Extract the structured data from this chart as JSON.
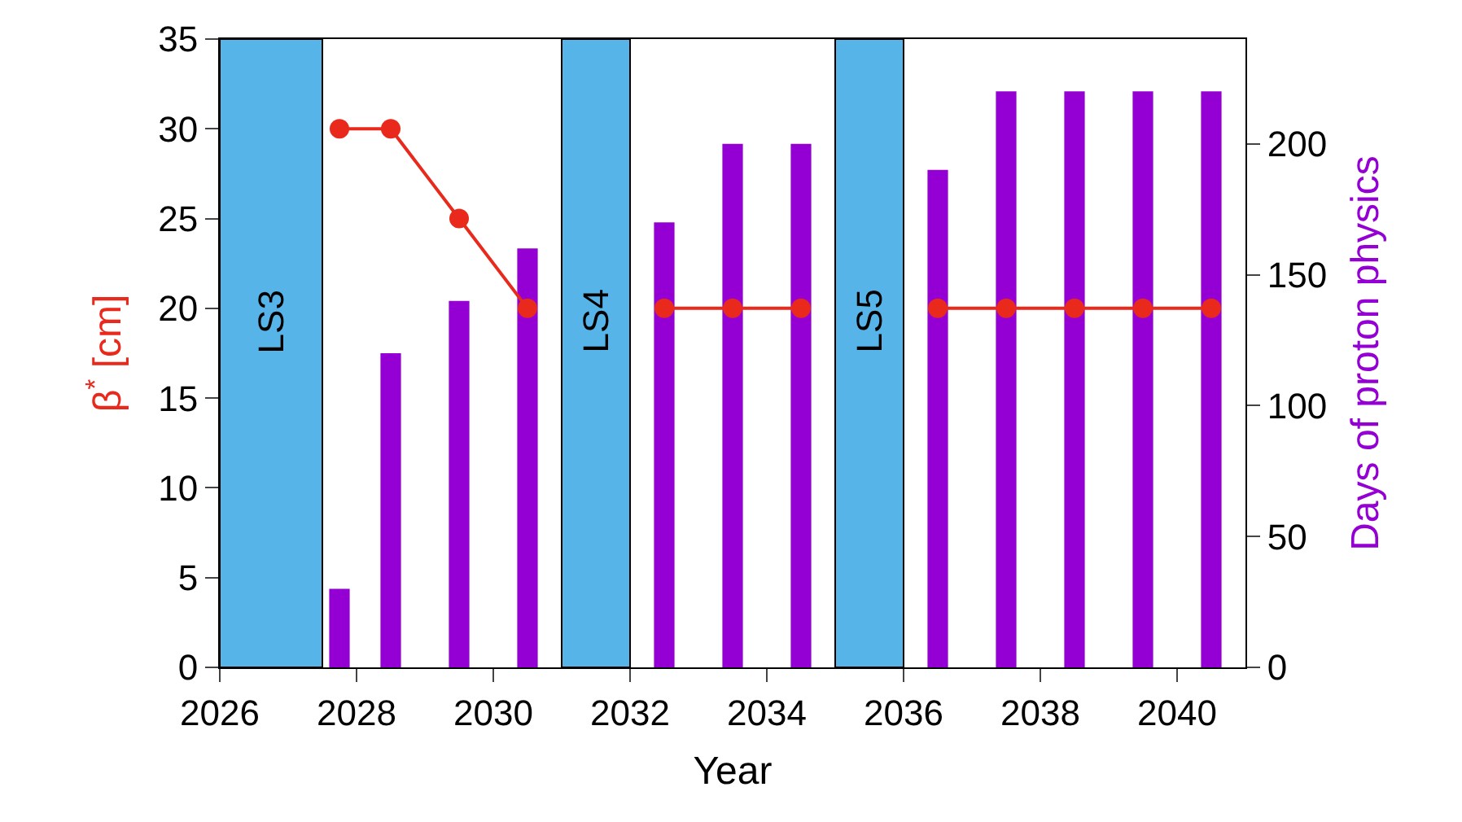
{
  "chart_data": {
    "type": "bar",
    "xlabel": "Year",
    "ylabel": "β$^{*}$ [cm]",
    "y2label": "Days of proton physics",
    "x": [
      2027.75,
      2028.5,
      2029.5,
      2030.5,
      2032.5,
      2033.5,
      2034.5,
      2036.5,
      2037.5,
      2038.5,
      2039.5,
      2040.5
    ],
    "series": [
      {
        "axis": "y2",
        "color": "#9400d3",
        "values": [
          30,
          120,
          140,
          160,
          170,
          200,
          200,
          190,
          220,
          220,
          220,
          220
        ]
      },
      {
        "type": "line",
        "axis": "y",
        "color": "#e8291c",
        "marker": "circle",
        "line_style": "solid",
        "x": [
          2027.75,
          2028.5,
          2029.5,
          2030.5,
          2031.5,
          2032.5,
          2033.5,
          2034.5,
          2035.5,
          2036.5,
          2037.5,
          2038.5,
          2039.5,
          2040.5
        ],
        "values": [
          30,
          30,
          25,
          20,
          null,
          20,
          20,
          20,
          null,
          20,
          20,
          20,
          20,
          20
        ]
      }
    ],
    "bands": [
      {
        "axis": "x",
        "from": 2026,
        "to": 2027.5,
        "label": "LS3",
        "color": "#56b4e9"
      },
      {
        "axis": "x",
        "from": 2031,
        "to": 2032,
        "label": "LS4",
        "color": "#56b4e9"
      },
      {
        "axis": "x",
        "from": 2035,
        "to": 2036,
        "label": "LS5",
        "color": "#56b4e9"
      }
    ],
    "xlim": [
      2026,
      2041
    ],
    "xticks": [
      2026,
      2028,
      2030,
      2032,
      2034,
      2036,
      2038,
      2040
    ],
    "ylim": [
      0,
      35
    ],
    "yticks": [
      0,
      5,
      10,
      15,
      20,
      25,
      30,
      35
    ],
    "y2lim": [
      0,
      240
    ],
    "y2ticks": [
      0,
      50,
      100,
      150,
      200
    ],
    "grid": false
  }
}
